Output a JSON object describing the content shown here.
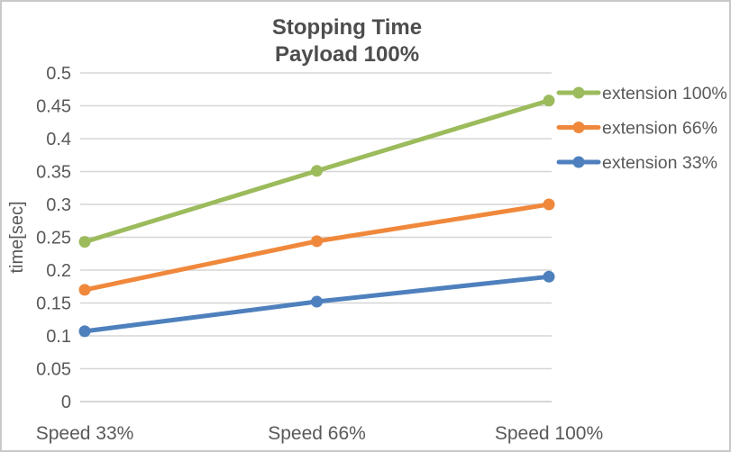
{
  "chart_data": {
    "type": "line",
    "title": "Stopping Time",
    "subtitle": "Payload 100%",
    "categories": [
      "Speed 33%",
      "Speed 66%",
      "Speed 100%"
    ],
    "series": [
      {
        "name": "extension 100%",
        "color": "#9CBB5C",
        "values": [
          0.243,
          0.351,
          0.458
        ]
      },
      {
        "name": "extension 66%",
        "color": "#F0883C",
        "values": [
          0.17,
          0.244,
          0.3
        ]
      },
      {
        "name": "extension 33%",
        "color": "#4E80BD",
        "values": [
          0.107,
          0.152,
          0.19
        ]
      }
    ],
    "xlabel": "",
    "ylabel": "time[sec]",
    "ylim": [
      0,
      0.5
    ],
    "ytick_step": 0.05,
    "ytick_labels": [
      "0",
      "0.05",
      "0.1",
      "0.15",
      "0.2",
      "0.25",
      "0.3",
      "0.35",
      "0.4",
      "0.45",
      "0.5"
    ],
    "grid": "horizontal",
    "legend_position": "right",
    "marker": "circle",
    "colors": {
      "title_text": "#4d4d4d",
      "axis_text": "#595959",
      "gridline": "#d6d6d6",
      "axis_line": "#c9c9c9",
      "background": "#ffffff",
      "frame_border": "#c9c9c9"
    }
  }
}
